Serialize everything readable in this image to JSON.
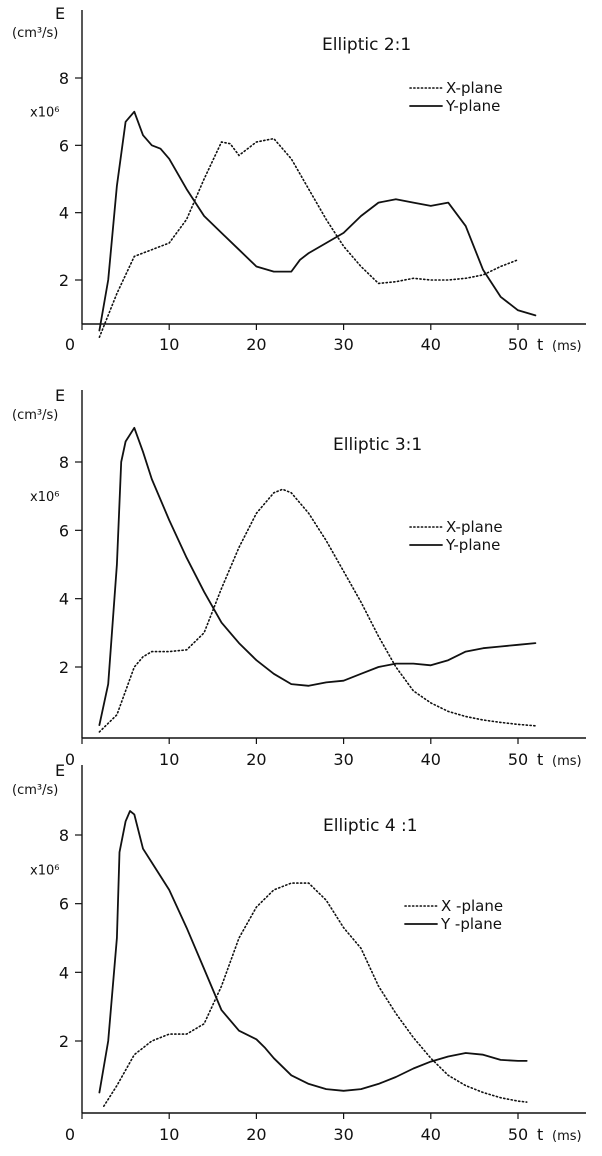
{
  "chart_data": [
    {
      "type": "line",
      "title": "Elliptic  2:1",
      "ylabel": "E",
      "yunit": "(cm³/s)",
      "yscale": "x10⁶",
      "xlabel": "t",
      "xunit": "(ms)",
      "xlim": [
        0,
        55
      ],
      "ylim": [
        0,
        9.5
      ],
      "xticks": [
        0,
        10,
        20,
        30,
        40,
        50
      ],
      "yticks": [
        2,
        4,
        6,
        8
      ],
      "legend_position": "right",
      "series": [
        {
          "name": "X-plane",
          "style": "dotted",
          "x": [
            2,
            4,
            6,
            8,
            10,
            12,
            14,
            16,
            17,
            18,
            20,
            22,
            24,
            26,
            28,
            30,
            32,
            34,
            36,
            38,
            40,
            42,
            44,
            46,
            48,
            50
          ],
          "y": [
            0.3,
            1.6,
            2.7,
            2.9,
            3.1,
            3.8,
            5.0,
            6.1,
            6.05,
            5.7,
            6.1,
            6.2,
            5.6,
            4.7,
            3.8,
            3.0,
            2.4,
            1.9,
            1.95,
            2.05,
            2.0,
            2.0,
            2.05,
            2.15,
            2.4,
            2.6
          ]
        },
        {
          "name": "Y-plane",
          "style": "solid",
          "x": [
            2,
            3,
            4,
            5,
            6,
            7,
            8,
            9,
            10,
            12,
            14,
            16,
            18,
            20,
            22,
            24,
            25,
            26,
            28,
            30,
            32,
            34,
            36,
            38,
            40,
            42,
            44,
            46,
            48,
            50,
            52
          ],
          "y": [
            0.5,
            2.0,
            4.8,
            6.7,
            7.0,
            6.3,
            6.0,
            5.9,
            5.6,
            4.7,
            3.9,
            3.4,
            2.9,
            2.4,
            2.25,
            2.25,
            2.6,
            2.8,
            3.1,
            3.4,
            3.9,
            4.3,
            4.4,
            4.3,
            4.2,
            4.3,
            3.6,
            2.3,
            1.5,
            1.1,
            0.95
          ]
        }
      ]
    },
    {
      "type": "line",
      "title": "Elliptic  3:1",
      "ylabel": "E",
      "yunit": "(cm³/s)",
      "yscale": "x10⁶",
      "xlabel": "t",
      "xunit": "(ms)",
      "xlim": [
        0,
        55
      ],
      "ylim": [
        0,
        9.5
      ],
      "xticks": [
        0,
        10,
        20,
        30,
        40,
        50
      ],
      "yticks": [
        2,
        4,
        6,
        8
      ],
      "legend_position": "right",
      "series": [
        {
          "name": "X-plane",
          "style": "dotted",
          "x": [
            2,
            4,
            6,
            7,
            8,
            10,
            12,
            14,
            16,
            18,
            20,
            22,
            23,
            24,
            26,
            28,
            30,
            32,
            34,
            36,
            38,
            40,
            42,
            44,
            46,
            48,
            50,
            52
          ],
          "y": [
            0.1,
            0.6,
            2.0,
            2.3,
            2.45,
            2.45,
            2.5,
            3.0,
            4.3,
            5.5,
            6.5,
            7.1,
            7.2,
            7.1,
            6.5,
            5.7,
            4.8,
            3.9,
            2.9,
            2.0,
            1.3,
            0.95,
            0.7,
            0.55,
            0.45,
            0.38,
            0.32,
            0.28
          ]
        },
        {
          "name": "Y-plane",
          "style": "solid",
          "x": [
            2,
            3,
            4,
            4.5,
            5,
            6,
            7,
            8,
            10,
            12,
            14,
            16,
            18,
            20,
            22,
            24,
            26,
            28,
            30,
            32,
            34,
            36,
            38,
            40,
            42,
            44,
            46,
            48,
            50,
            52
          ],
          "y": [
            0.3,
            1.5,
            5.0,
            8.0,
            8.6,
            9.0,
            8.3,
            7.5,
            6.3,
            5.2,
            4.2,
            3.3,
            2.7,
            2.2,
            1.8,
            1.5,
            1.45,
            1.55,
            1.6,
            1.8,
            2.0,
            2.1,
            2.1,
            2.05,
            2.2,
            2.45,
            2.55,
            2.6,
            2.65,
            2.7
          ]
        }
      ]
    },
    {
      "type": "line",
      "title": "Elliptic  4 :1",
      "ylabel": "E",
      "yunit": "(cm³/s)",
      "yscale": "x10⁶",
      "xlabel": "t",
      "xunit": "(ms)",
      "xlim": [
        0,
        55
      ],
      "ylim": [
        0,
        9.5
      ],
      "xticks": [
        0,
        10,
        20,
        30,
        40,
        50
      ],
      "yticks": [
        2,
        4,
        6,
        8
      ],
      "legend_position": "right",
      "series": [
        {
          "name": "X -plane",
          "style": "dotted",
          "x": [
            2.5,
            4,
            6,
            8,
            10,
            12,
            14,
            16,
            18,
            20,
            22,
            24,
            26,
            28,
            30,
            32,
            34,
            36,
            38,
            40,
            42,
            44,
            46,
            48,
            50,
            51
          ],
          "y": [
            0.1,
            0.7,
            1.6,
            2.0,
            2.2,
            2.2,
            2.5,
            3.6,
            5.0,
            5.9,
            6.4,
            6.6,
            6.6,
            6.1,
            5.3,
            4.7,
            3.6,
            2.8,
            2.1,
            1.5,
            1.0,
            0.7,
            0.5,
            0.35,
            0.25,
            0.22
          ]
        },
        {
          "name": "Y -plane",
          "style": "solid",
          "x": [
            2,
            3,
            4,
            4.3,
            5,
            5.5,
            6,
            7,
            8,
            10,
            12,
            14,
            16,
            18,
            20,
            21,
            22,
            24,
            26,
            28,
            30,
            32,
            34,
            36,
            38,
            40,
            42,
            44,
            46,
            48,
            50,
            51
          ],
          "y": [
            0.5,
            2.0,
            5.0,
            7.5,
            8.4,
            8.7,
            8.6,
            7.6,
            7.2,
            6.4,
            5.3,
            4.1,
            2.9,
            2.3,
            2.05,
            1.8,
            1.5,
            1.0,
            0.75,
            0.6,
            0.55,
            0.6,
            0.75,
            0.95,
            1.2,
            1.4,
            1.55,
            1.65,
            1.6,
            1.45,
            1.42,
            1.42
          ]
        }
      ]
    }
  ]
}
